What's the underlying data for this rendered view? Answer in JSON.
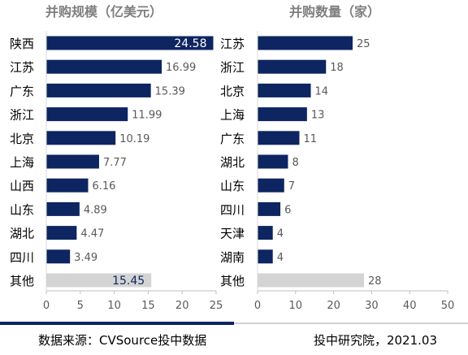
{
  "chart_data": [
    {
      "type": "bar",
      "orientation": "horizontal",
      "title": "并购规模（亿美元）",
      "categories": [
        "陕西",
        "江苏",
        "广东",
        "浙江",
        "北京",
        "上海",
        "山西",
        "山东",
        "湖北",
        "四川",
        "其他"
      ],
      "values": [
        24.58,
        16.99,
        15.39,
        11.99,
        10.19,
        7.77,
        6.16,
        4.89,
        4.47,
        3.49,
        15.45
      ],
      "value_labels": [
        "24.58",
        "16.99",
        "15.39",
        "11.99",
        "10.19",
        "7.77",
        "6.16",
        "4.89",
        "4.47",
        "3.49",
        "15.45"
      ],
      "xlim": [
        0,
        25
      ],
      "xticks": [
        "0",
        "5",
        "10",
        "15",
        "20",
        "25"
      ],
      "grid": false,
      "colors": {
        "bar": "#0d2560",
        "other": "#d4d4d4",
        "label": "#595959",
        "label_inside": "#ffffff"
      }
    },
    {
      "type": "bar",
      "orientation": "horizontal",
      "title": "并购数量（家）",
      "categories": [
        "江苏",
        "浙江",
        "北京",
        "上海",
        "广东",
        "湖北",
        "山东",
        "四川",
        "天津",
        "湖南",
        "其他"
      ],
      "values": [
        25,
        18,
        14,
        13,
        11,
        8,
        7,
        6,
        4,
        4,
        28
      ],
      "value_labels": [
        "25",
        "18",
        "14",
        "13",
        "11",
        "8",
        "7",
        "6",
        "4",
        "4",
        "28"
      ],
      "xlim": [
        0,
        50
      ],
      "xticks": [
        "0",
        "10",
        "20",
        "30",
        "40",
        "50"
      ],
      "grid": false,
      "colors": {
        "bar": "#0d2560",
        "other": "#d4d4d4",
        "label": "#595959"
      }
    }
  ],
  "footer": {
    "source": "数据来源：CVSource投中数据",
    "credit": "投中研究院，2021.03"
  }
}
